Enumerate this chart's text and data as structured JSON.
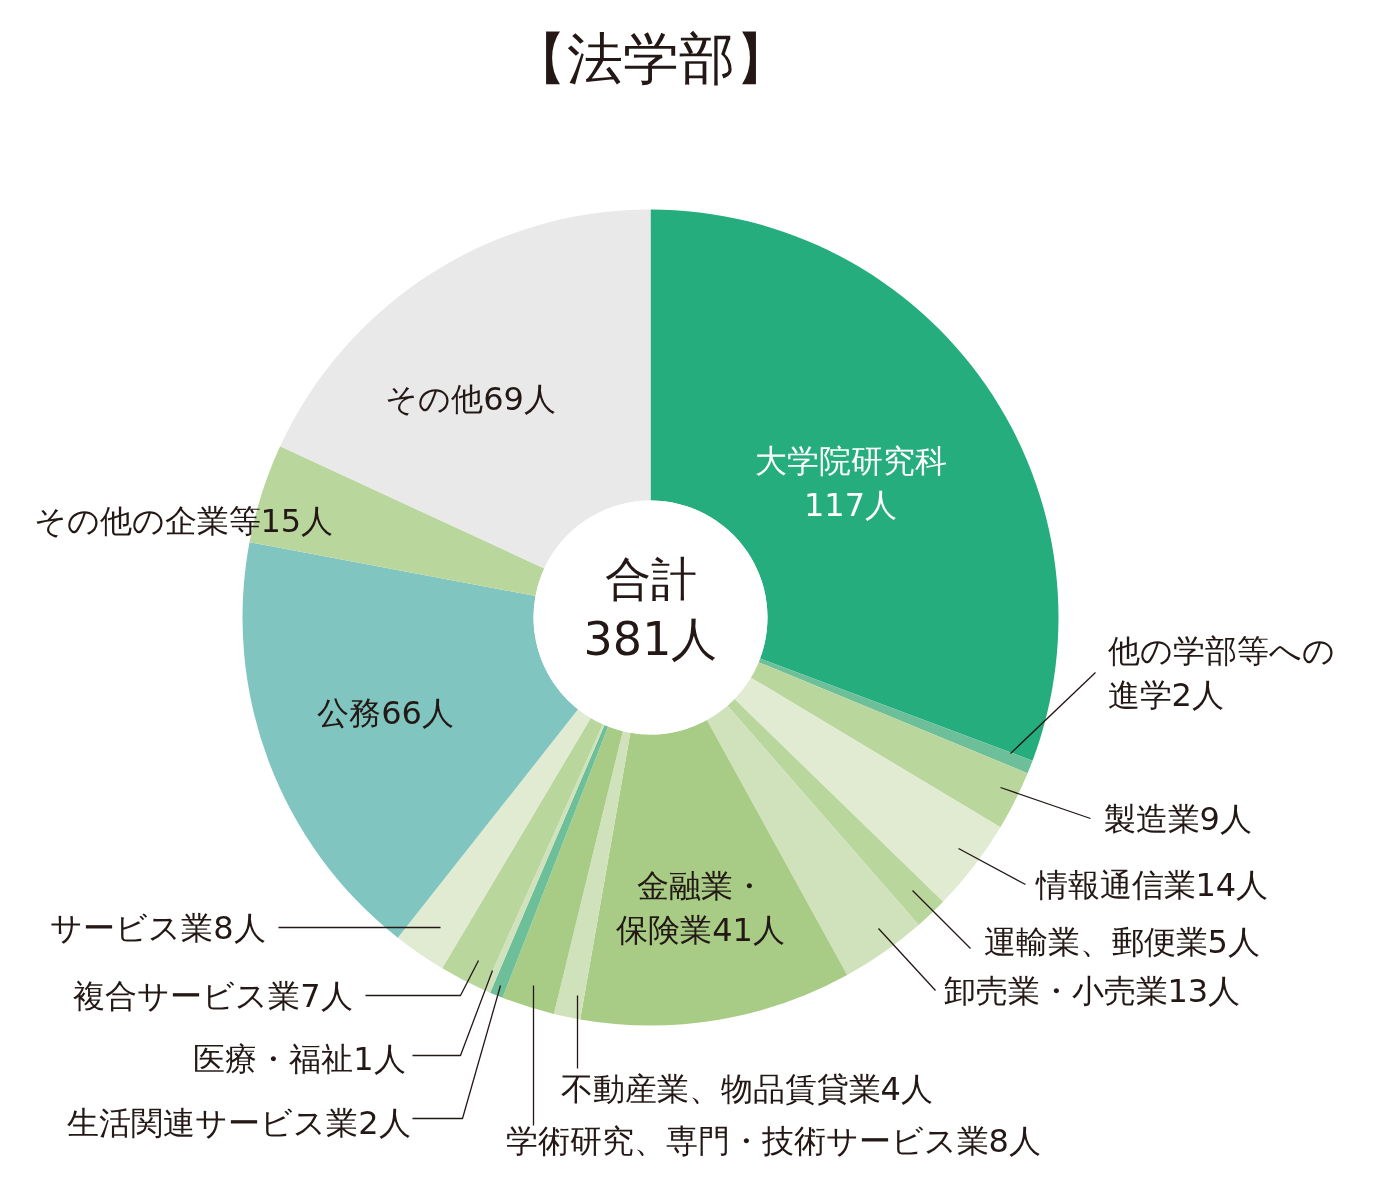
{
  "chart_data": {
    "type": "donut",
    "title": "【法学部】",
    "categories": [
      "大学院研究科",
      "他の学部等への進学",
      "製造業",
      "情報通信業",
      "運輸業、郵便業",
      "卸売業・小売業",
      "金融業・保険業",
      "不動産業、物品賃貸業",
      "学術研究、専門・技術サービス業",
      "生活関連サービス業",
      "医療・福祉",
      "複合サービス業",
      "サービス業",
      "公務",
      "その他の企業等",
      "その他"
    ],
    "values": [
      117,
      2,
      9,
      14,
      5,
      13,
      41,
      4,
      8,
      2,
      1,
      7,
      8,
      66,
      15,
      69
    ],
    "value_labels": [
      "117人",
      "2人",
      "9人",
      "14人",
      "5人",
      "13人",
      "41人",
      "4人",
      "8人",
      "2人",
      "1人",
      "7人",
      "8人",
      "66人",
      "15人",
      "69人"
    ],
    "colors": [
      "#26ad7e",
      "#6dbf9a",
      "#b9d69d",
      "#e0ebd2",
      "#b9d69d",
      "#d0e2bb",
      "#a8cc85",
      "#d0e2bb",
      "#a8cc85",
      "#6dbf9a",
      "#d0e2bb",
      "#b9d69d",
      "#e0ebd2",
      "#80c5c0",
      "#b9d69d",
      "#e9e9e9"
    ],
    "annotations": [
      "合計",
      "381人"
    ]
  }
}
